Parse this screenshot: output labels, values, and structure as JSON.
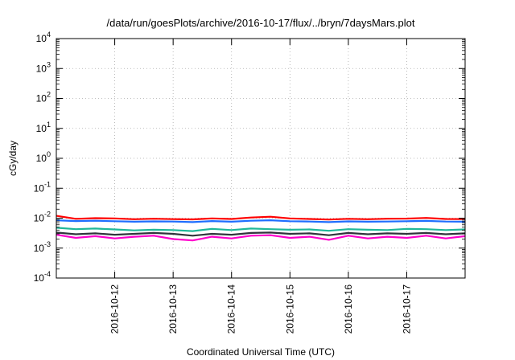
{
  "chart_data": {
    "type": "line",
    "title": "/data/run/goesPlots/archive/2016-10-17/flux/../bryn/7daysMars.plot",
    "xlabel": "Coordinated Universal Time (UTC)",
    "ylabel": "cGy/day",
    "yscale": "log",
    "ylim": [
      0.0001,
      10000
    ],
    "xlim": [
      "2016-10-11T00:00",
      "2016-10-17T23:59"
    ],
    "grid": true,
    "legend": "none",
    "ytick_labels": [
      {
        "base": "10",
        "exp": "-4"
      },
      {
        "base": "10",
        "exp": "-3"
      },
      {
        "base": "10",
        "exp": "-2"
      },
      {
        "base": "10",
        "exp": "-1"
      },
      {
        "base": "10",
        "exp": "0"
      },
      {
        "base": "10",
        "exp": "1"
      },
      {
        "base": "10",
        "exp": "2"
      },
      {
        "base": "10",
        "exp": "3"
      },
      {
        "base": "10",
        "exp": "4"
      }
    ],
    "xtick_labels": [
      "2016-10-12",
      "2016-10-13",
      "2016-10-14",
      "2016-10-15",
      "2016-10-16",
      "2016-10-17"
    ],
    "x": [
      "2016-10-11T00:00",
      "2016-10-11T08:00",
      "2016-10-11T16:00",
      "2016-10-12T00:00",
      "2016-10-12T08:00",
      "2016-10-12T16:00",
      "2016-10-13T00:00",
      "2016-10-13T08:00",
      "2016-10-13T16:00",
      "2016-10-14T00:00",
      "2016-10-14T08:00",
      "2016-10-14T16:00",
      "2016-10-15T00:00",
      "2016-10-15T08:00",
      "2016-10-15T16:00",
      "2016-10-16T00:00",
      "2016-10-16T08:00",
      "2016-10-16T16:00",
      "2016-10-17T00:00",
      "2016-10-17T08:00",
      "2016-10-17T16:00",
      "2016-10-17T23:59"
    ],
    "series": [
      {
        "color": "#ff0000",
        "values": [
          0.012,
          0.0095,
          0.01,
          0.0098,
          0.0092,
          0.0096,
          0.0093,
          0.0091,
          0.0098,
          0.0094,
          0.0105,
          0.0112,
          0.0098,
          0.0094,
          0.009,
          0.0095,
          0.0092,
          0.0096,
          0.0097,
          0.0102,
          0.0094,
          0.0093
        ]
      },
      {
        "color": "#1f6fff",
        "values": [
          0.0085,
          0.008,
          0.0082,
          0.0079,
          0.0076,
          0.0078,
          0.0077,
          0.0074,
          0.008,
          0.0076,
          0.0082,
          0.0085,
          0.0079,
          0.0077,
          0.0074,
          0.0078,
          0.0076,
          0.0077,
          0.0079,
          0.0081,
          0.0077,
          0.0076
        ]
      },
      {
        "color": "#20b89a",
        "values": [
          0.0048,
          0.0043,
          0.0045,
          0.0042,
          0.0039,
          0.0041,
          0.004,
          0.0037,
          0.0044,
          0.004,
          0.0045,
          0.0043,
          0.0041,
          0.0042,
          0.0038,
          0.0043,
          0.0041,
          0.004,
          0.0044,
          0.0043,
          0.004,
          0.0042
        ]
      },
      {
        "color": "#30343c",
        "values": [
          0.0033,
          0.0029,
          0.0031,
          0.0028,
          0.003,
          0.0032,
          0.003,
          0.0026,
          0.003,
          0.0028,
          0.0032,
          0.0033,
          0.003,
          0.0031,
          0.0027,
          0.0032,
          0.0029,
          0.0031,
          0.003,
          0.0032,
          0.0029,
          0.0031
        ]
      },
      {
        "color": "#ff00cc",
        "values": [
          0.0028,
          0.0022,
          0.0025,
          0.0021,
          0.0024,
          0.0026,
          0.002,
          0.0018,
          0.0024,
          0.0021,
          0.0026,
          0.0027,
          0.0022,
          0.0024,
          0.0019,
          0.0026,
          0.0021,
          0.0024,
          0.0022,
          0.0026,
          0.0021,
          0.0025
        ]
      }
    ]
  }
}
